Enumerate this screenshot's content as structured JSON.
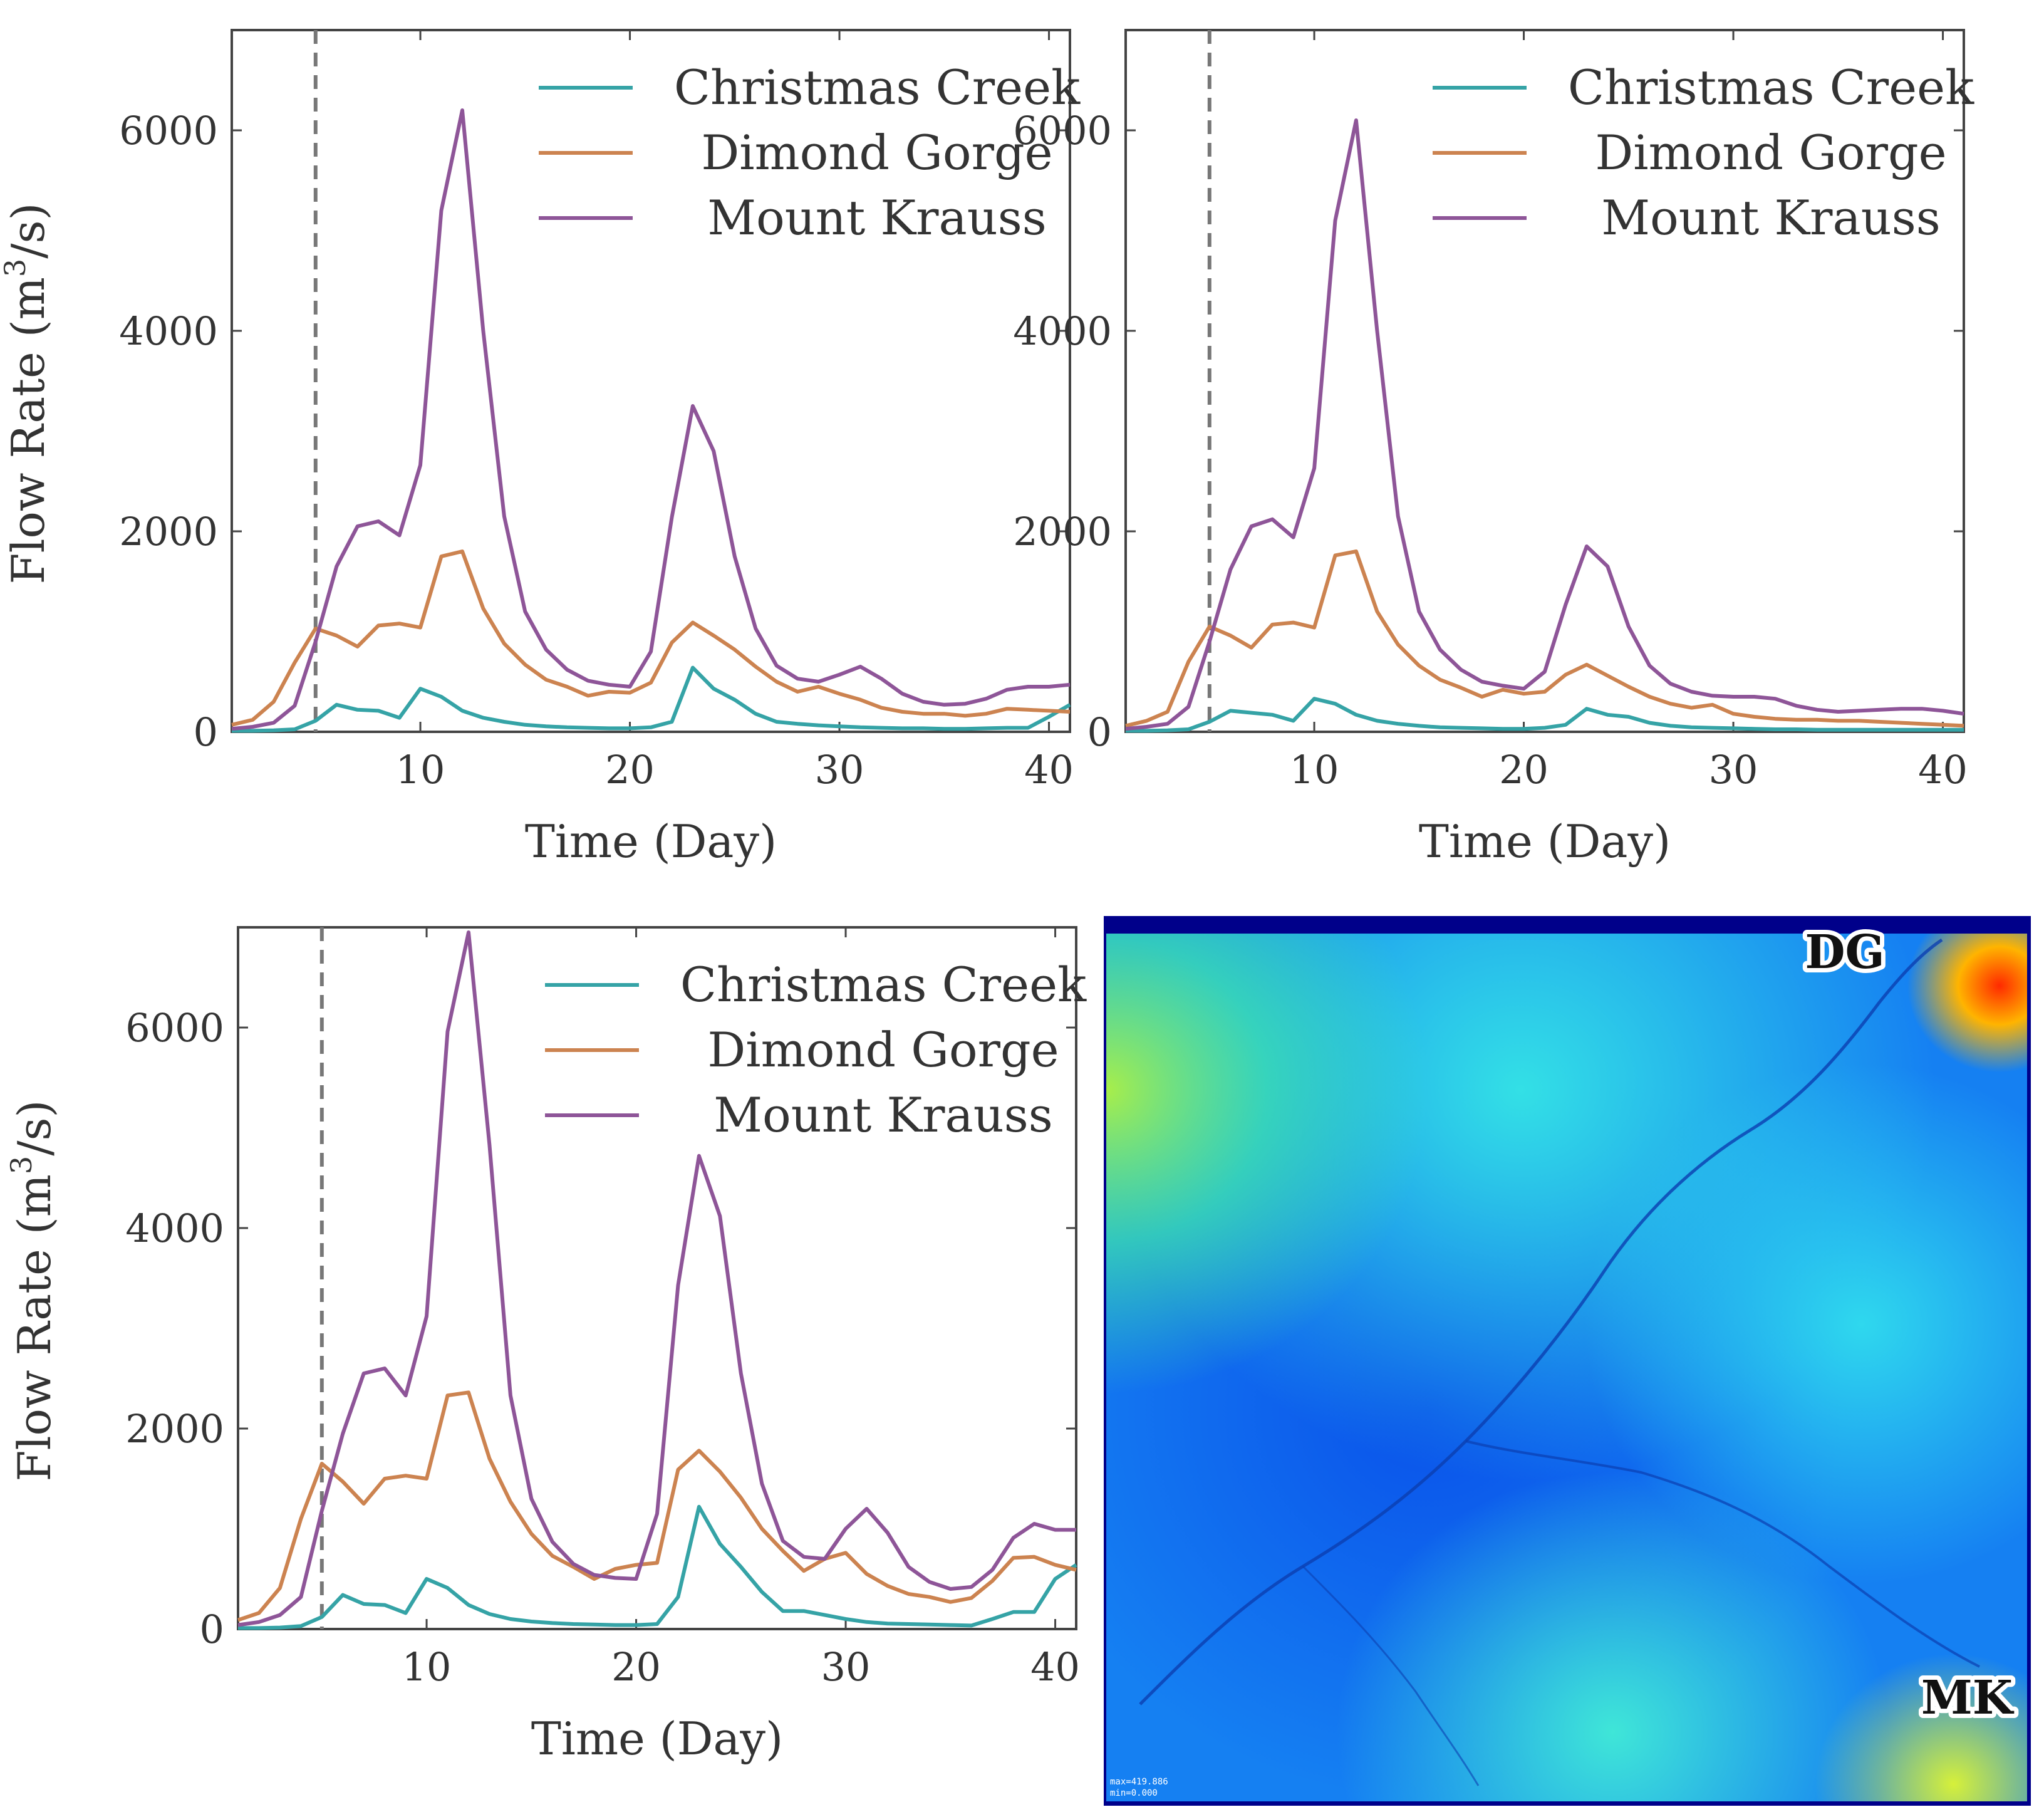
{
  "colors": {
    "christmas_creek": "#35a3a6",
    "dimond_gorge": "#cc8350",
    "mount_krauss": "#8e5598",
    "axis": "#444444",
    "event_line": "#777777"
  },
  "chart_data": [
    {
      "type": "line",
      "panel": "top-left",
      "xlabel": "Time (Day)",
      "ylabel_main": "Flow Rate (m",
      "ylabel_sup": "3",
      "ylabel_tail": "/s)",
      "xlim": [
        1,
        41
      ],
      "ylim": [
        0,
        7000
      ],
      "xticks": [
        10,
        20,
        30,
        40
      ],
      "yticks": [
        0,
        2000,
        4000,
        6000
      ],
      "show_y_title": true,
      "show_legend_right": true,
      "event_day": 5,
      "legend": [
        "Christmas Creek",
        "Dimond Gorge",
        "Mount Krauss"
      ],
      "x": [
        1,
        2,
        3,
        4,
        5,
        6,
        7,
        8,
        9,
        10,
        11,
        12,
        13,
        14,
        15,
        16,
        17,
        18,
        19,
        20,
        21,
        22,
        23,
        24,
        25,
        26,
        27,
        28,
        29,
        30,
        31,
        32,
        33,
        34,
        35,
        36,
        37,
        38,
        39,
        40,
        41
      ],
      "series": [
        {
          "name": "Christmas Creek",
          "color_key": "christmas_creek",
          "values": [
            10,
            10,
            15,
            25,
            110,
            270,
            220,
            210,
            140,
            430,
            350,
            210,
            140,
            100,
            70,
            55,
            45,
            40,
            35,
            35,
            45,
            100,
            640,
            430,
            320,
            180,
            100,
            80,
            65,
            55,
            45,
            40,
            35,
            35,
            30,
            30,
            35,
            40,
            40,
            150,
            270
          ]
        },
        {
          "name": "Dimond Gorge",
          "color_key": "dimond_gorge",
          "values": [
            70,
            120,
            300,
            690,
            1030,
            960,
            850,
            1060,
            1080,
            1040,
            1750,
            1800,
            1230,
            880,
            670,
            520,
            450,
            360,
            400,
            390,
            490,
            890,
            1090,
            960,
            820,
            650,
            500,
            400,
            450,
            380,
            320,
            240,
            200,
            180,
            180,
            160,
            180,
            230,
            220,
            210,
            200
          ]
        },
        {
          "name": "Mount Krauss",
          "color_key": "mount_krauss",
          "values": [
            30,
            50,
            90,
            260,
            900,
            1650,
            2050,
            2100,
            1960,
            2660,
            5200,
            6200,
            4000,
            2150,
            1200,
            820,
            620,
            510,
            470,
            450,
            800,
            2140,
            3250,
            2800,
            1750,
            1030,
            660,
            530,
            500,
            570,
            650,
            530,
            380,
            300,
            270,
            280,
            330,
            420,
            450,
            450,
            470
          ]
        }
      ]
    },
    {
      "type": "line",
      "panel": "top-right",
      "xlabel": "Time (Day)",
      "xlim": [
        1,
        41
      ],
      "ylim": [
        0,
        7000
      ],
      "xticks": [
        10,
        20,
        30,
        40
      ],
      "yticks": [
        0,
        2000,
        4000,
        6000
      ],
      "show_y_title": false,
      "show_legend_right": true,
      "event_day": 5,
      "legend": [
        "Christmas Creek",
        "Dimond Gorge",
        "Mount Krauss"
      ],
      "x": [
        1,
        2,
        3,
        4,
        5,
        6,
        7,
        8,
        9,
        10,
        11,
        12,
        13,
        14,
        15,
        16,
        17,
        18,
        19,
        20,
        21,
        22,
        23,
        24,
        25,
        26,
        27,
        28,
        29,
        30,
        31,
        32,
        33,
        34,
        35,
        36,
        37,
        38,
        39,
        40,
        41
      ],
      "series": [
        {
          "name": "Christmas Creek",
          "color_key": "christmas_creek",
          "values": [
            10,
            10,
            15,
            25,
            100,
            210,
            190,
            170,
            110,
            330,
            280,
            170,
            110,
            80,
            60,
            45,
            40,
            35,
            30,
            30,
            40,
            70,
            230,
            170,
            150,
            90,
            60,
            45,
            40,
            35,
            30,
            25,
            25,
            20,
            20,
            20,
            20,
            20,
            20,
            20,
            20
          ]
        },
        {
          "name": "Dimond Gorge",
          "color_key": "dimond_gorge",
          "values": [
            60,
            110,
            200,
            700,
            1050,
            960,
            840,
            1070,
            1090,
            1040,
            1760,
            1800,
            1200,
            870,
            660,
            520,
            440,
            350,
            420,
            380,
            400,
            570,
            670,
            560,
            450,
            350,
            280,
            240,
            270,
            180,
            150,
            130,
            120,
            120,
            110,
            110,
            100,
            90,
            80,
            70,
            60
          ]
        },
        {
          "name": "Mount Krauss",
          "color_key": "mount_krauss",
          "values": [
            30,
            50,
            80,
            250,
            900,
            1620,
            2050,
            2120,
            1940,
            2630,
            5100,
            6100,
            4000,
            2150,
            1200,
            820,
            620,
            500,
            460,
            430,
            600,
            1270,
            1850,
            1650,
            1050,
            660,
            480,
            400,
            360,
            350,
            350,
            330,
            260,
            220,
            200,
            210,
            220,
            230,
            230,
            210,
            180
          ]
        }
      ]
    },
    {
      "type": "line",
      "panel": "bottom-left",
      "xlabel": "Time (Day)",
      "ylabel_main": "Flow Rate (m",
      "ylabel_sup": "3",
      "ylabel_tail": "/s)",
      "xlim": [
        1,
        41
      ],
      "ylim": [
        0,
        7000
      ],
      "xticks": [
        10,
        20,
        30,
        40
      ],
      "yticks": [
        0,
        2000,
        4000,
        6000
      ],
      "show_y_title": true,
      "show_legend_right": true,
      "event_day": 5,
      "legend": [
        "Christmas Creek",
        "Dimond Gorge",
        "Mount Krauss"
      ],
      "x": [
        1,
        2,
        3,
        4,
        5,
        6,
        7,
        8,
        9,
        10,
        11,
        12,
        13,
        14,
        15,
        16,
        17,
        18,
        19,
        20,
        21,
        22,
        23,
        24,
        25,
        26,
        27,
        28,
        29,
        30,
        31,
        32,
        33,
        34,
        35,
        36,
        37,
        38,
        39,
        40,
        41
      ],
      "series": [
        {
          "name": "Christmas Creek",
          "color_key": "christmas_creek",
          "values": [
            10,
            10,
            15,
            30,
            120,
            340,
            250,
            240,
            160,
            500,
            410,
            240,
            150,
            100,
            75,
            60,
            50,
            45,
            40,
            40,
            50,
            320,
            1220,
            850,
            620,
            370,
            180,
            180,
            140,
            100,
            70,
            55,
            50,
            45,
            40,
            35,
            100,
            170,
            170,
            500,
            640
          ]
        },
        {
          "name": "Dimond Gorge",
          "color_key": "dimond_gorge",
          "values": [
            90,
            160,
            410,
            1100,
            1650,
            1470,
            1250,
            1500,
            1530,
            1500,
            2330,
            2360,
            1700,
            1270,
            950,
            730,
            620,
            500,
            600,
            640,
            660,
            1590,
            1780,
            1570,
            1310,
            1000,
            780,
            580,
            700,
            760,
            550,
            430,
            350,
            320,
            270,
            310,
            480,
            710,
            720,
            640,
            590
          ]
        },
        {
          "name": "Mount Krauss",
          "color_key": "mount_krauss",
          "values": [
            40,
            70,
            140,
            320,
            1180,
            1950,
            2550,
            2600,
            2330,
            3120,
            5960,
            6950,
            4830,
            2330,
            1300,
            870,
            650,
            540,
            510,
            500,
            1150,
            3430,
            4720,
            4120,
            2550,
            1450,
            880,
            720,
            700,
            1000,
            1200,
            960,
            620,
            470,
            400,
            420,
            590,
            910,
            1050,
            990,
            990
          ]
        }
      ]
    }
  ],
  "map_panel": {
    "label_top": "DG",
    "label_bottom": "MK",
    "corner_text_1": "max=419.886",
    "corner_text_2": "min=0.000"
  }
}
